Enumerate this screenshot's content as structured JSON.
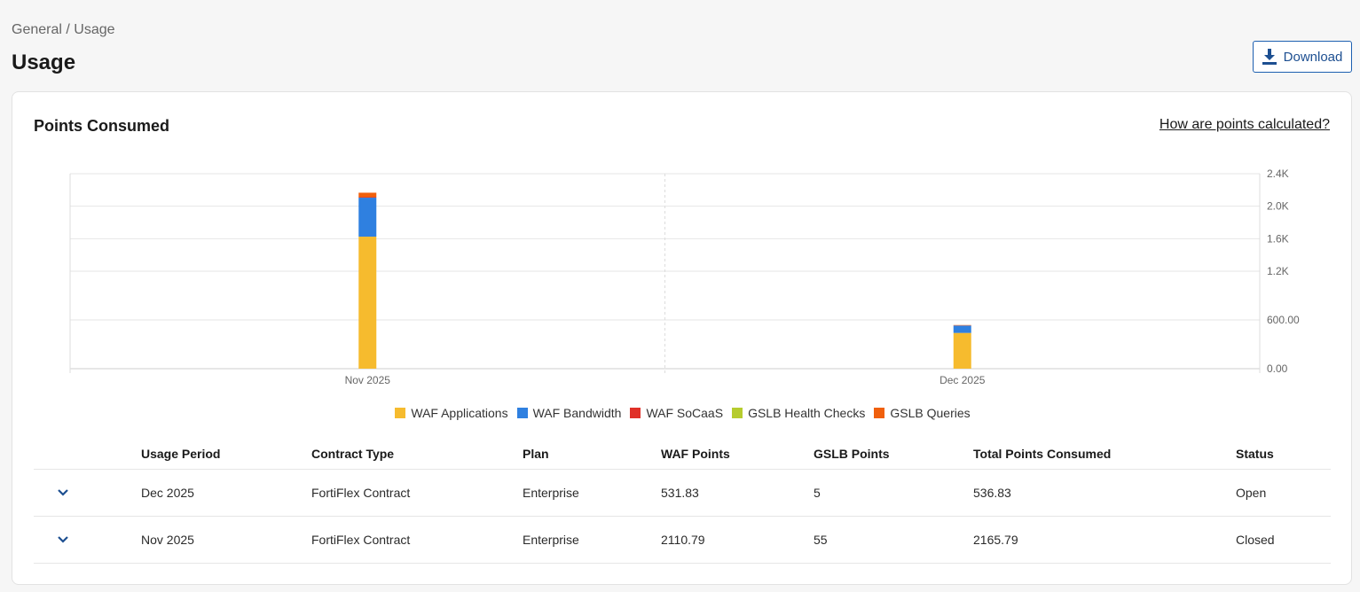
{
  "breadcrumb": "General / Usage",
  "page_title": "Usage",
  "download_label": "Download",
  "card": {
    "title": "Points Consumed",
    "help_link": "How are points calculated?"
  },
  "chart_data": {
    "type": "bar",
    "stacked": true,
    "categories": [
      "Nov 2025",
      "Dec 2025"
    ],
    "series": [
      {
        "name": "WAF Applications",
        "color": "#f6bb2e",
        "values": [
          1625,
          440
        ]
      },
      {
        "name": "WAF Bandwidth",
        "color": "#2f80e0",
        "values": [
          480,
          90
        ]
      },
      {
        "name": "WAF SoCaaS",
        "color": "#e03028",
        "values": [
          6,
          2
        ]
      },
      {
        "name": "GSLB Health Checks",
        "color": "#b6cc2e",
        "values": [
          0,
          0
        ]
      },
      {
        "name": "GSLB Queries",
        "color": "#f0600d",
        "values": [
          55,
          5
        ]
      }
    ],
    "y_ticks": [
      {
        "value": 0,
        "label": "0.00"
      },
      {
        "value": 600,
        "label": "600.00"
      },
      {
        "value": 1200,
        "label": "1.2K"
      },
      {
        "value": 1600,
        "label": "1.6K"
      },
      {
        "value": 2000,
        "label": "2.0K"
      },
      {
        "value": 2400,
        "label": "2.4K"
      }
    ],
    "ylim": [
      0,
      2400
    ],
    "grid": true,
    "legend": "bottom-center"
  },
  "table": {
    "headers": [
      "Usage Period",
      "Contract Type",
      "Plan",
      "WAF Points",
      "GSLB Points",
      "Total Points Consumed",
      "Status"
    ],
    "rows": [
      [
        "Dec 2025",
        "FortiFlex Contract",
        "Enterprise",
        "531.83",
        "5",
        "536.83",
        "Open"
      ],
      [
        "Nov 2025",
        "FortiFlex Contract",
        "Enterprise",
        "2110.79",
        "55",
        "2165.79",
        "Closed"
      ]
    ]
  }
}
